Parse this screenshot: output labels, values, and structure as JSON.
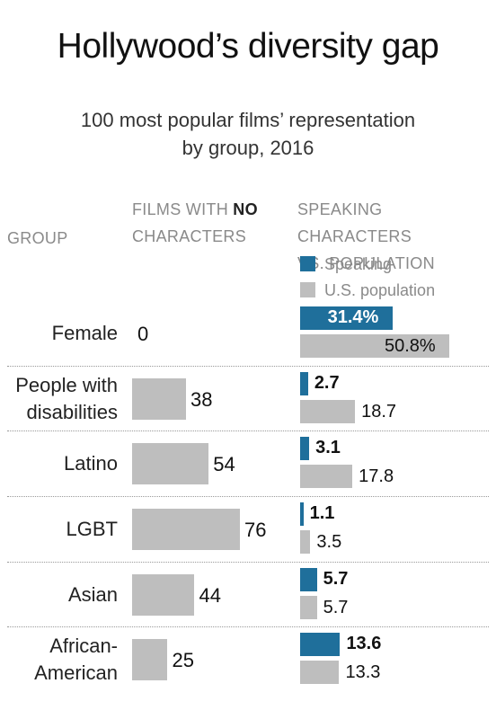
{
  "title": "Hollywood’s diversity gap",
  "subtitle_line1": "100 most popular films’ representation",
  "subtitle_line2": "by group, 2016",
  "headers": {
    "group": "GROUP",
    "films_line1_prefix": "FILMS WITH ",
    "films_line1_bold": "NO",
    "films_line2": "CHARACTERS",
    "speaking_line1": "SPEAKING CHARACTERS",
    "speaking_line2": "VS. POPULATION"
  },
  "legend": [
    {
      "label": "Speaking",
      "color": "#1f6f9b"
    },
    {
      "label": "U.S. population",
      "color": "#bebebe"
    }
  ],
  "chart_data": {
    "type": "bar",
    "categories": [
      [
        "Female"
      ],
      [
        "People with",
        "disabilities"
      ],
      [
        "Latino"
      ],
      [
        "LGBT"
      ],
      [
        "Asian"
      ],
      [
        "African-",
        "American"
      ]
    ],
    "films_with_no_characters": {
      "values": [
        0,
        38,
        54,
        76,
        44,
        25
      ],
      "labels": [
        "0",
        "38",
        "54",
        "76",
        "44",
        "25"
      ]
    },
    "series": [
      {
        "name": "Speaking",
        "values": [
          31.4,
          2.7,
          3.1,
          1.1,
          5.7,
          13.6
        ],
        "labels": [
          "31.4%",
          "2.7",
          "3.1",
          "1.1",
          "5.7",
          "13.6"
        ],
        "color": "#1f6f9b"
      },
      {
        "name": "U.S. population",
        "values": [
          50.8,
          18.7,
          17.8,
          3.5,
          5.7,
          13.3
        ],
        "labels": [
          "50.8%",
          "18.7",
          "17.8",
          "3.5",
          "5.7",
          "13.3"
        ],
        "color": "#bebebe"
      }
    ],
    "grid": false,
    "legend_position": "top"
  }
}
